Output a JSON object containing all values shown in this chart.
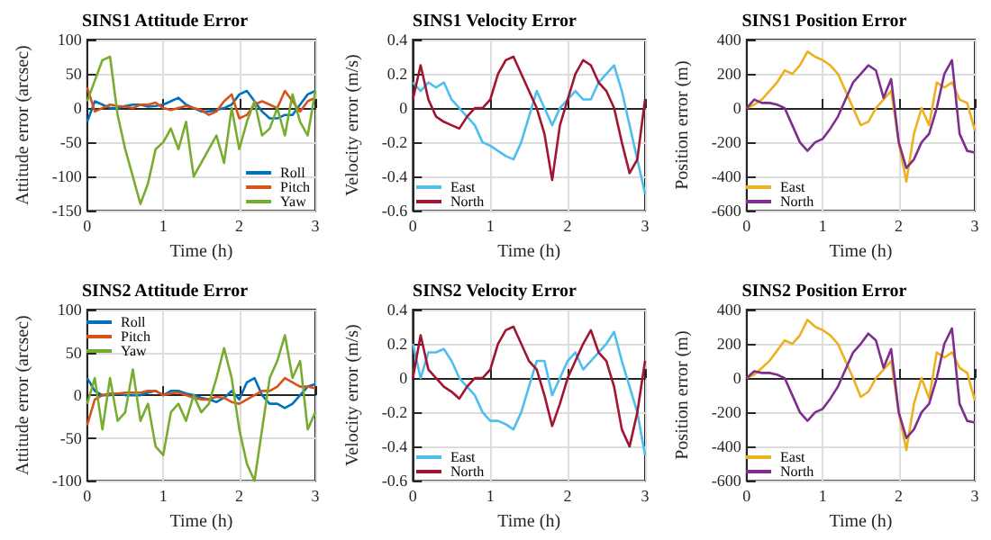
{
  "chart_data": [
    {
      "type": "line",
      "title": "SINS1 Attitude Error",
      "xlabel": "Time (h)",
      "ylabel": "Attitude error (arcsec)",
      "x": [
        0,
        0.1,
        0.2,
        0.3,
        0.4,
        0.5,
        0.6,
        0.7,
        0.8,
        0.9,
        1,
        1.1,
        1.2,
        1.3,
        1.4,
        1.5,
        1.6,
        1.7,
        1.8,
        1.9,
        2,
        2.1,
        2.2,
        2.3,
        2.4,
        2.5,
        2.6,
        2.7,
        2.8,
        2.9,
        3
      ],
      "xlim": [
        0,
        3
      ],
      "xticks": [
        0,
        1,
        2,
        3
      ],
      "ylim": [
        -150,
        100
      ],
      "yticks": [
        -150,
        -100,
        -50,
        0,
        50,
        100
      ],
      "grid": true,
      "legend": "bottom right",
      "series": [
        {
          "name": "Roll",
          "color": "#0072bd",
          "values": [
            -20,
            10,
            5,
            0,
            0,
            3,
            5,
            5,
            2,
            3,
            5,
            10,
            15,
            5,
            0,
            -5,
            -5,
            -3,
            0,
            5,
            20,
            25,
            10,
            -5,
            -15,
            -15,
            -10,
            -10,
            5,
            20,
            25
          ]
        },
        {
          "name": "Pitch",
          "color": "#d95319",
          "values": [
            30,
            -5,
            0,
            5,
            3,
            2,
            0,
            5,
            5,
            8,
            0,
            -3,
            0,
            3,
            0,
            -3,
            -10,
            -5,
            10,
            20,
            -15,
            -10,
            5,
            10,
            5,
            0,
            25,
            10,
            -5,
            10,
            15
          ]
        },
        {
          "name": "Yaw",
          "color": "#77ac30",
          "values": [
            10,
            40,
            70,
            75,
            -10,
            -60,
            -100,
            -140,
            -110,
            -60,
            -50,
            -30,
            -60,
            -20,
            -100,
            -80,
            -60,
            -40,
            -80,
            0,
            -60,
            -20,
            10,
            -40,
            -30,
            0,
            -40,
            20,
            -20,
            -40,
            25
          ]
        }
      ]
    },
    {
      "type": "line",
      "title": "SINS1 Velocity Error",
      "xlabel": "Time (h)",
      "ylabel": "Velocity error (m/s)",
      "x": [
        0,
        0.1,
        0.2,
        0.3,
        0.4,
        0.5,
        0.6,
        0.7,
        0.8,
        0.9,
        1,
        1.1,
        1.2,
        1.3,
        1.4,
        1.5,
        1.6,
        1.7,
        1.8,
        1.9,
        2,
        2.1,
        2.2,
        2.3,
        2.4,
        2.5,
        2.6,
        2.7,
        2.8,
        2.9,
        3
      ],
      "xlim": [
        0,
        3
      ],
      "xticks": [
        0,
        1,
        2,
        3
      ],
      "ylim": [
        -0.6,
        0.4
      ],
      "yticks": [
        -0.6,
        -0.4,
        -0.2,
        0,
        0.2,
        0.4
      ],
      "grid": true,
      "legend": "bottom left",
      "series": [
        {
          "name": "East",
          "color": "#4dbeee",
          "values": [
            0.15,
            0.1,
            0.15,
            0.12,
            0.15,
            0.05,
            0,
            -0.05,
            -0.1,
            -0.2,
            -0.22,
            -0.25,
            -0.28,
            -0.3,
            -0.2,
            -0.05,
            0.1,
            0,
            -0.1,
            0,
            0.05,
            0.1,
            0.05,
            0.05,
            0.15,
            0.2,
            0.25,
            0.1,
            -0.1,
            -0.3,
            -0.5
          ]
        },
        {
          "name": "North",
          "color": "#a2142f",
          "values": [
            0.05,
            0.25,
            0.05,
            -0.05,
            -0.08,
            -0.1,
            -0.12,
            -0.05,
            0,
            0,
            0.05,
            0.2,
            0.28,
            0.3,
            0.2,
            0.1,
            0,
            -0.15,
            -0.42,
            -0.1,
            0.05,
            0.2,
            0.28,
            0.25,
            0.15,
            0.1,
            0,
            -0.2,
            -0.38,
            -0.3,
            0.05
          ]
        }
      ]
    },
    {
      "type": "line",
      "title": "SINS1 Position Error",
      "xlabel": "Time (h)",
      "ylabel": "Position error (m)",
      "x": [
        0,
        0.1,
        0.2,
        0.3,
        0.4,
        0.5,
        0.6,
        0.7,
        0.8,
        0.9,
        1,
        1.1,
        1.2,
        1.3,
        1.4,
        1.5,
        1.6,
        1.7,
        1.8,
        1.9,
        2,
        2.1,
        2.2,
        2.3,
        2.4,
        2.5,
        2.6,
        2.7,
        2.8,
        2.9,
        3
      ],
      "xlim": [
        0,
        3
      ],
      "xticks": [
        0,
        1,
        2,
        3
      ],
      "ylim": [
        -600,
        400
      ],
      "yticks": [
        -600,
        -400,
        -200,
        0,
        200,
        400
      ],
      "grid": true,
      "legend": "bottom left",
      "series": [
        {
          "name": "East",
          "color": "#edb120",
          "values": [
            0,
            20,
            50,
            100,
            150,
            220,
            200,
            250,
            330,
            300,
            280,
            250,
            200,
            100,
            0,
            -100,
            -80,
            0,
            50,
            100,
            -200,
            -430,
            -150,
            0,
            -100,
            150,
            120,
            150,
            50,
            30,
            -130
          ]
        },
        {
          "name": "North",
          "color": "#7e2f8e",
          "values": [
            0,
            50,
            30,
            30,
            20,
            0,
            -100,
            -200,
            -250,
            -200,
            -180,
            -120,
            -50,
            50,
            150,
            200,
            250,
            220,
            60,
            170,
            -200,
            -350,
            -300,
            -200,
            -150,
            0,
            200,
            280,
            -150,
            -250,
            -260
          ]
        }
      ]
    },
    {
      "type": "line",
      "title": "SINS2 Attitude Error",
      "xlabel": "Time (h)",
      "ylabel": "Attitude error (arcsec)",
      "x": [
        0,
        0.1,
        0.2,
        0.3,
        0.4,
        0.5,
        0.6,
        0.7,
        0.8,
        0.9,
        1,
        1.1,
        1.2,
        1.3,
        1.4,
        1.5,
        1.6,
        1.7,
        1.8,
        1.9,
        2,
        2.1,
        2.2,
        2.3,
        2.4,
        2.5,
        2.6,
        2.7,
        2.8,
        2.9,
        3
      ],
      "xlim": [
        0,
        3
      ],
      "xticks": [
        0,
        1,
        2,
        3
      ],
      "ylim": [
        -100,
        100
      ],
      "yticks": [
        -100,
        -50,
        0,
        50,
        100
      ],
      "grid": true,
      "legend": "top left",
      "series": [
        {
          "name": "Roll",
          "color": "#0072bd",
          "values": [
            20,
            5,
            0,
            0,
            2,
            0,
            0,
            0,
            3,
            5,
            0,
            5,
            5,
            2,
            0,
            -3,
            -5,
            -8,
            -3,
            5,
            -5,
            15,
            20,
            0,
            -10,
            -10,
            -15,
            -10,
            0,
            10,
            13
          ]
        },
        {
          "name": "Pitch",
          "color": "#d95319",
          "values": [
            -35,
            -5,
            0,
            2,
            2,
            3,
            3,
            3,
            5,
            5,
            0,
            2,
            3,
            0,
            -3,
            -5,
            -5,
            -2,
            -3,
            -8,
            -10,
            -5,
            0,
            5,
            5,
            10,
            20,
            15,
            10,
            10,
            8
          ]
        },
        {
          "name": "Yaw",
          "color": "#77ac30",
          "values": [
            -10,
            20,
            -40,
            20,
            -30,
            -20,
            30,
            -30,
            -10,
            -60,
            -70,
            -20,
            -10,
            -30,
            0,
            -20,
            -10,
            20,
            55,
            20,
            -40,
            -80,
            -100,
            -40,
            20,
            40,
            70,
            20,
            40,
            -40,
            -20
          ]
        }
      ]
    },
    {
      "type": "line",
      "title": "SINS2 Velocity Error",
      "xlabel": "Time (h)",
      "ylabel": "Velocity error (m/s)",
      "x": [
        0,
        0.1,
        0.2,
        0.3,
        0.4,
        0.5,
        0.6,
        0.7,
        0.8,
        0.9,
        1,
        1.1,
        1.2,
        1.3,
        1.4,
        1.5,
        1.6,
        1.7,
        1.8,
        1.9,
        2,
        2.1,
        2.2,
        2.3,
        2.4,
        2.5,
        2.6,
        2.7,
        2.8,
        2.9,
        3
      ],
      "xlim": [
        0,
        3
      ],
      "xticks": [
        0,
        1,
        2,
        3
      ],
      "ylim": [
        -0.6,
        0.4
      ],
      "yticks": [
        -0.6,
        -0.4,
        -0.2,
        0,
        0.2,
        0.4
      ],
      "grid": true,
      "legend": "bottom left",
      "series": [
        {
          "name": "East",
          "color": "#4dbeee",
          "values": [
            0.2,
            0,
            0.15,
            0.15,
            0.17,
            0.1,
            0,
            -0.05,
            -0.1,
            -0.2,
            -0.25,
            -0.25,
            -0.27,
            -0.3,
            -0.2,
            -0.05,
            0.1,
            0.1,
            -0.1,
            0,
            0.1,
            0.15,
            0.05,
            0.1,
            0.15,
            0.2,
            0.27,
            0.1,
            -0.05,
            -0.2,
            -0.45
          ]
        },
        {
          "name": "North",
          "color": "#a2142f",
          "values": [
            0,
            0.25,
            0.05,
            0,
            -0.05,
            -0.08,
            -0.12,
            -0.05,
            0,
            0,
            0.05,
            0.2,
            0.28,
            0.3,
            0.2,
            0.1,
            0.05,
            -0.1,
            -0.28,
            -0.15,
            0,
            0.1,
            0.2,
            0.28,
            0.15,
            0.1,
            -0.05,
            -0.3,
            -0.4,
            -0.2,
            0.1
          ]
        }
      ]
    },
    {
      "type": "line",
      "title": "SINS2 Position Error",
      "xlabel": "Time (h)",
      "ylabel": "Position error (m)",
      "x": [
        0,
        0.1,
        0.2,
        0.3,
        0.4,
        0.5,
        0.6,
        0.7,
        0.8,
        0.9,
        1,
        1.1,
        1.2,
        1.3,
        1.4,
        1.5,
        1.6,
        1.7,
        1.8,
        1.9,
        2,
        2.1,
        2.2,
        2.3,
        2.4,
        2.5,
        2.6,
        2.7,
        2.8,
        2.9,
        3
      ],
      "xlim": [
        0,
        3
      ],
      "xticks": [
        0,
        1,
        2,
        3
      ],
      "ylim": [
        -600,
        400
      ],
      "yticks": [
        -600,
        -400,
        -200,
        0,
        200,
        400
      ],
      "grid": true,
      "legend": "bottom left",
      "series": [
        {
          "name": "East",
          "color": "#edb120",
          "values": [
            0,
            20,
            60,
            100,
            160,
            220,
            200,
            250,
            340,
            300,
            280,
            250,
            200,
            100,
            0,
            -110,
            -80,
            0,
            50,
            100,
            -200,
            -420,
            -150,
            0,
            -120,
            150,
            120,
            150,
            60,
            30,
            -130
          ]
        },
        {
          "name": "North",
          "color": "#7e2f8e",
          "values": [
            0,
            40,
            30,
            30,
            20,
            0,
            -100,
            -200,
            -250,
            -200,
            -180,
            -120,
            -50,
            50,
            150,
            200,
            260,
            220,
            60,
            170,
            -200,
            -350,
            -300,
            -200,
            -150,
            0,
            200,
            290,
            -150,
            -250,
            -260
          ]
        }
      ]
    }
  ]
}
